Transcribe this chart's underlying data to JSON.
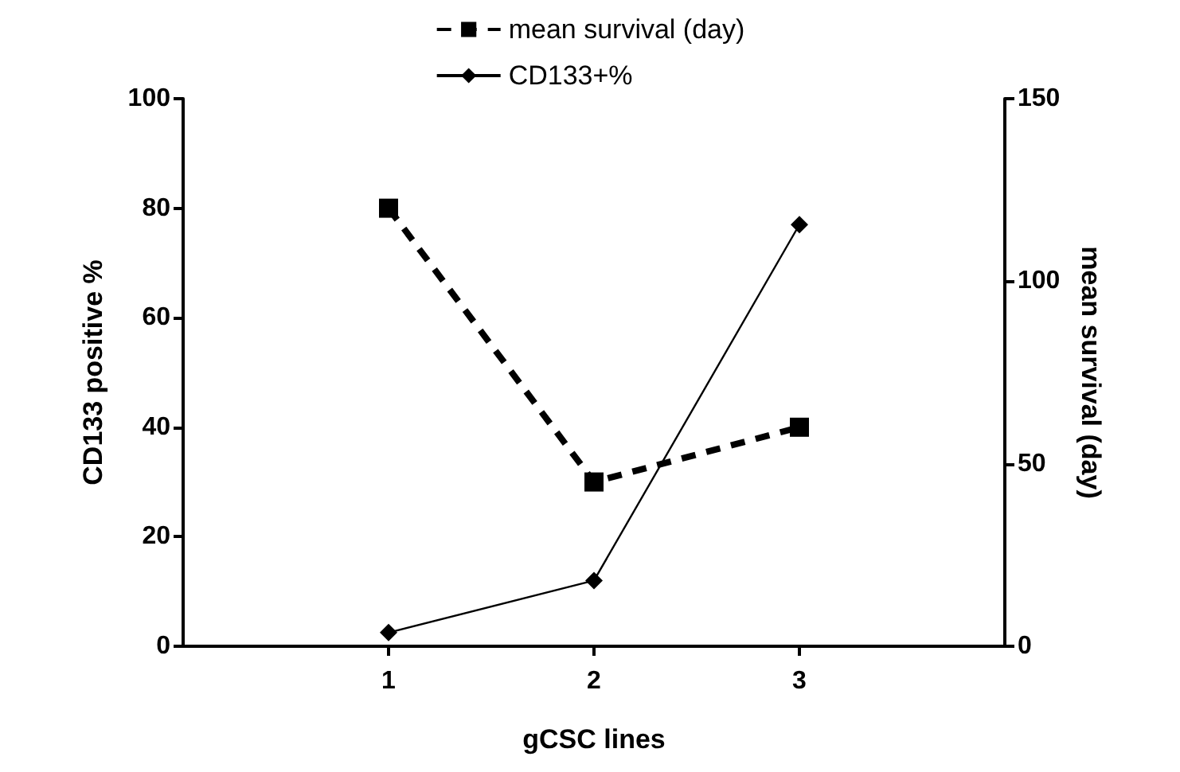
{
  "chart_data": {
    "type": "line",
    "xlabel": "gCSC lines",
    "ylabel": "CD133 positive %",
    "y2label": "mean survival (day)",
    "x": [
      1,
      2,
      3
    ],
    "xlim": [
      0,
      4
    ],
    "xticks": [
      1,
      2,
      3
    ],
    "ylim": [
      0,
      100
    ],
    "yticks": [
      0,
      20,
      40,
      60,
      80,
      100
    ],
    "y2lim": [
      0,
      150
    ],
    "y2ticks": [
      0,
      50,
      100,
      150
    ],
    "series": [
      {
        "name": "mean survival (day)",
        "color": "#000000",
        "values": [
          120,
          45,
          60
        ],
        "axis": "y2",
        "marker": "square",
        "line_style": "dashed"
      },
      {
        "name": "CD133+%",
        "color": "#000000",
        "values": [
          2.5,
          12,
          77
        ],
        "axis": "y",
        "marker": "diamond",
        "line_style": "solid"
      }
    ],
    "grid": false,
    "legend": "top"
  }
}
